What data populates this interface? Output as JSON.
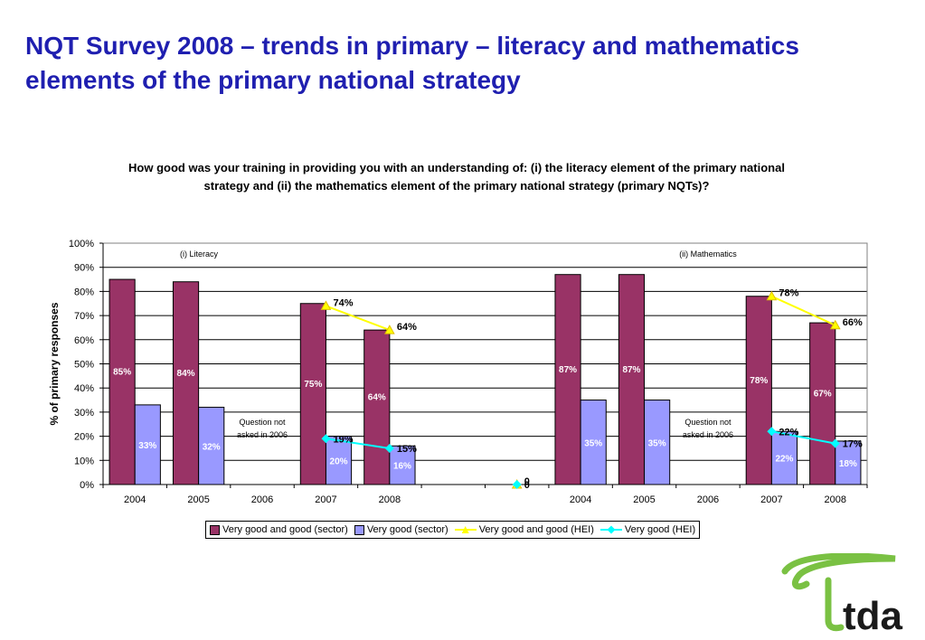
{
  "page": {
    "title": "NQT Survey 2008 – trends in primary – literacy and mathematics elements of the primary national strategy"
  },
  "chart_data": {
    "type": "bar",
    "title": "How good was your training in providing you with an understanding of: (i) the literacy element of the primary national strategy and (ii) the mathematics element of the primary national strategy (primary NQTs)?",
    "ylabel": "% of primary responses",
    "ylim": [
      0,
      100
    ],
    "y_ticks": [
      "0%",
      "10%",
      "20%",
      "30%",
      "40%",
      "50%",
      "60%",
      "70%",
      "80%",
      "90%",
      "100%"
    ],
    "grid": true,
    "legend_position": "bottom",
    "categories": [
      "2004",
      "2005",
      "2006",
      "2007",
      "2008",
      "",
      "",
      "2004",
      "2005",
      "2006",
      "2007",
      "2008"
    ],
    "groups": [
      {
        "label": "(i) Literacy",
        "categories": [
          "2004",
          "2005",
          "2006",
          "2007",
          "2008"
        ]
      },
      {
        "label": "(ii) Mathematics",
        "categories": [
          "2004",
          "2005",
          "2006",
          "2007",
          "2008"
        ]
      }
    ],
    "series": [
      {
        "name": "Very good and good (sector)",
        "type": "bar",
        "color": "#993366",
        "values": [
          85,
          84,
          null,
          75,
          64,
          null,
          null,
          87,
          87,
          null,
          78,
          67
        ],
        "labels": [
          "85%",
          "84%",
          "",
          "75%",
          "64%",
          "",
          "",
          "87%",
          "87%",
          "",
          "78%",
          "67%"
        ]
      },
      {
        "name": "Very good (sector)",
        "type": "bar",
        "color": "#9999ff",
        "values": [
          33,
          32,
          null,
          20,
          16,
          null,
          null,
          35,
          35,
          null,
          22,
          18
        ],
        "labels": [
          "33%",
          "32%",
          "",
          "20%",
          "16%",
          "",
          "",
          "35%",
          "35%",
          "",
          "22%",
          "18%"
        ]
      },
      {
        "name": "Very good and good (HEI)",
        "type": "line",
        "color": "#ffff00",
        "values": [
          null,
          null,
          null,
          74,
          64,
          null,
          0,
          null,
          null,
          null,
          78,
          66
        ],
        "labels": [
          "",
          "",
          "",
          "74%",
          "64%",
          "",
          "0",
          "",
          "",
          "",
          "78%",
          "66%"
        ]
      },
      {
        "name": "Very good (HEI)",
        "type": "line",
        "color": "#00ffff",
        "values": [
          null,
          null,
          null,
          19,
          15,
          null,
          0,
          null,
          null,
          null,
          22,
          17
        ],
        "labels": [
          "",
          "",
          "",
          "19%",
          "15%",
          "",
          "0",
          "",
          "",
          "",
          "22%",
          "17%"
        ]
      }
    ],
    "annotations": [
      {
        "category_index": 2,
        "lines": [
          "Question not",
          "asked in 2006"
        ]
      },
      {
        "category_index": 9,
        "lines": [
          "Question not",
          "asked in 2006"
        ]
      }
    ]
  },
  "logo": {
    "text": "tda",
    "color": "#7ac143",
    "text_color": "#1a1a1a"
  }
}
